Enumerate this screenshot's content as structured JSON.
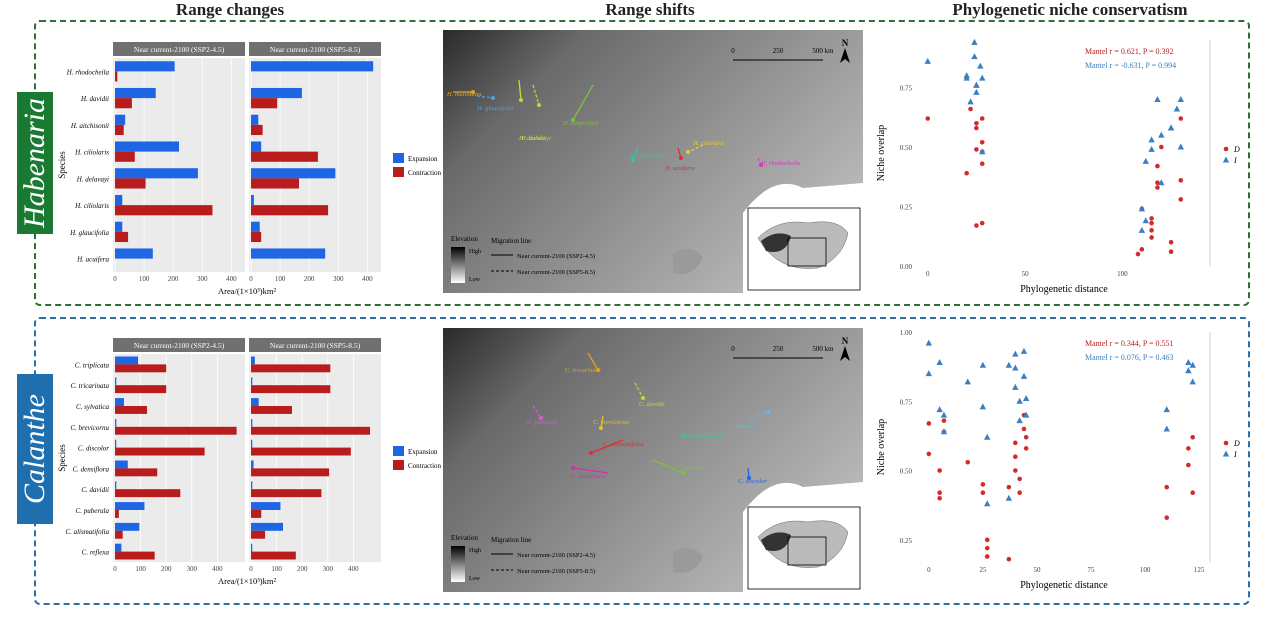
{
  "titles": {
    "range_changes": "Range changes",
    "range_shifts": "Range shifts",
    "pnc": "Phylogenetic niche conservatism"
  },
  "genera": [
    "Habenaria",
    "Calanthe"
  ],
  "colors": {
    "expansion": "#1f66e5",
    "contraction": "#b81c1c",
    "panel_top": "#2e6e38",
    "panel_bottom": "#2b6ea8",
    "genus_top_bg": "#1a7a32",
    "genus_bottom_bg": "#1f6fae",
    "strip": "#707070",
    "plot_bg": "#ebebeb",
    "triangle": "#3a7fc1",
    "dot": "#d42a2a"
  },
  "legend": {
    "expansion": "Expansion",
    "contraction": "Contraction"
  },
  "map_legend": {
    "elevation": "Elevation",
    "high": "High",
    "low": "Low",
    "migration": "Migration line",
    "ssp245": "Near current-2100 (SSP2-4.5)",
    "ssp585": "Near current-2100 (SSP5-8.5)",
    "north": "N",
    "scale_top": [
      "0",
      "250",
      "500 km"
    ],
    "scale_bottom": [
      "0",
      "250",
      "500 km"
    ]
  },
  "map_labels_top": [
    "H. malintana",
    "H. glaucifolia",
    "H. davidii",
    "H. delavayi",
    "H. limprichtii",
    "H. aitchisonii",
    "H. ciliolaris",
    "H. acuifera",
    "H. rhodocheila"
  ],
  "map_labels_bottom": [
    "C. tricarinata",
    "C. davidii",
    "C. brevicornu",
    "C. alismatifolia",
    "C. puberula",
    "C. densiflora",
    "C. sylvatica",
    "C. triplicata",
    "C. reflexa",
    "C. discolor"
  ],
  "chart_data": [
    {
      "type": "bar",
      "title": "Habenaria range changes",
      "facets": [
        "Near current-2100 (SSP2-4.5)",
        "Near current-2100 (SSP5-8.5)"
      ],
      "categories": [
        "H. rhodocheila",
        "H. davidii",
        "H. aitchisonii",
        "H. ciliolaris",
        "H. delavayi",
        "H. ciliolaris",
        "H. glaucifolia",
        "H. acuifera"
      ],
      "ylabel": "Species",
      "xlabel": "Area/(1×10³)km²",
      "xticks": [
        "0",
        "100",
        "200",
        "300",
        "400"
      ],
      "xlim": [
        0,
        440
      ],
      "series": [
        {
          "name": "Expansion",
          "facet": 0,
          "values": [
            205,
            140,
            35,
            220,
            285,
            25,
            25,
            130
          ]
        },
        {
          "name": "Contraction",
          "facet": 0,
          "values": [
            8,
            58,
            30,
            68,
            105,
            335,
            45,
            0
          ]
        },
        {
          "name": "Expansion",
          "facet": 1,
          "values": [
            420,
            175,
            25,
            35,
            290,
            10,
            30,
            255
          ]
        },
        {
          "name": "Contraction",
          "facet": 1,
          "values": [
            0,
            90,
            40,
            230,
            165,
            265,
            35,
            0
          ]
        }
      ]
    },
    {
      "type": "bar",
      "title": "Calanthe range changes",
      "facets": [
        "Near current-2100 (SSP2-4.5)",
        "Near current-2100 (SSP5-8.5)"
      ],
      "categories": [
        "C. triplicata",
        "C. tricarinata",
        "C. sylvatica",
        "C. brevicornu",
        "C. discolor",
        "C. densiflora",
        "C. davidii",
        "C. puberula",
        "C. alismatifolia",
        "C. reflexa"
      ],
      "ylabel": "Species",
      "xlabel": "Area/(1×10³)km²",
      "xticks": [
        "0",
        "100",
        "200",
        "300",
        "400"
      ],
      "xlim": [
        0,
        500
      ],
      "series": [
        {
          "name": "Expansion",
          "facet": 0,
          "values": [
            90,
            5,
            35,
            5,
            5,
            50,
            5,
            115,
            95,
            25
          ]
        },
        {
          "name": "Contraction",
          "facet": 0,
          "values": [
            200,
            200,
            125,
            475,
            350,
            165,
            255,
            15,
            30,
            155
          ]
        },
        {
          "name": "Expansion",
          "facet": 1,
          "values": [
            15,
            5,
            30,
            5,
            5,
            10,
            5,
            115,
            125,
            5
          ]
        },
        {
          "name": "Contraction",
          "facet": 1,
          "values": [
            310,
            310,
            160,
            465,
            390,
            305,
            275,
            40,
            55,
            175
          ]
        }
      ]
    },
    {
      "type": "scatter",
      "title": "Habenaria niche overlap",
      "xlabel": "Phylogenetic distance",
      "ylabel": "Niche overlap",
      "xticks": [
        "0",
        "50",
        "100"
      ],
      "yticks": [
        "0.00",
        "0.25",
        "0.50",
        "0.75"
      ],
      "xlim": [
        -5,
        145
      ],
      "ylim": [
        0,
        0.95
      ],
      "annotations": [
        "Mantel r = 0.621, P = 0.392",
        "Mantel r = -0.631, P = 0.994"
      ],
      "legend": [
        "D",
        "I"
      ],
      "series": [
        {
          "name": "D",
          "x": [
            0,
            20,
            22,
            25,
            25,
            25,
            25,
            28,
            28,
            28,
            28,
            28,
            108,
            110,
            110,
            115,
            115,
            115,
            115,
            118,
            118,
            118,
            120,
            125,
            125,
            130,
            130,
            130
          ],
          "y": [
            0.62,
            0.39,
            0.66,
            0.6,
            0.58,
            0.49,
            0.17,
            0.52,
            0.48,
            0.62,
            0.43,
            0.18,
            0.05,
            0.07,
            0.24,
            0.2,
            0.18,
            0.15,
            0.12,
            0.33,
            0.35,
            0.42,
            0.5,
            0.06,
            0.1,
            0.28,
            0.36,
            0.62
          ]
        },
        {
          "name": "I",
          "x": [
            0,
            20,
            20,
            22,
            24,
            24,
            25,
            25,
            25,
            27,
            28,
            28,
            110,
            110,
            112,
            112,
            115,
            115,
            118,
            120,
            120,
            125,
            125,
            128,
            130,
            130
          ],
          "y": [
            0.86,
            0.8,
            0.79,
            0.69,
            0.94,
            0.88,
            0.76,
            0.76,
            0.73,
            0.84,
            0.79,
            0.48,
            0.24,
            0.15,
            0.44,
            0.19,
            0.49,
            0.53,
            0.7,
            0.55,
            0.35,
            0.58,
            0.58,
            0.66,
            0.7,
            0.5
          ]
        }
      ]
    },
    {
      "type": "scatter",
      "title": "Calanthe niche overlap",
      "xlabel": "Phylogenetic distance",
      "ylabel": "Niche overlap",
      "xticks": [
        "0",
        "25",
        "50",
        "75",
        "100",
        "125"
      ],
      "yticks": [
        "0.25",
        "0.50",
        "0.75",
        "1.00"
      ],
      "xlim": [
        -5,
        130
      ],
      "ylim": [
        0.17,
        1.0
      ],
      "annotations": [
        "Mantel r = 0.344, P = 0.551",
        "Mantel r = 0.076, P = 0.463"
      ],
      "legend": [
        "D",
        "I"
      ],
      "series": [
        {
          "name": "D",
          "x": [
            0,
            0,
            5,
            5,
            5,
            7,
            7,
            18,
            25,
            25,
            27,
            27,
            27,
            37,
            37,
            40,
            40,
            40,
            42,
            42,
            44,
            44,
            45,
            45,
            110,
            110,
            120,
            120,
            122,
            122
          ],
          "y": [
            0.56,
            0.67,
            0.4,
            0.42,
            0.5,
            0.64,
            0.68,
            0.53,
            0.42,
            0.45,
            0.25,
            0.22,
            0.19,
            0.18,
            0.44,
            0.6,
            0.55,
            0.5,
            0.47,
            0.42,
            0.7,
            0.65,
            0.62,
            0.58,
            0.33,
            0.44,
            0.58,
            0.52,
            0.42,
            0.62
          ]
        },
        {
          "name": "I",
          "x": [
            0,
            0,
            5,
            5,
            7,
            7,
            18,
            25,
            25,
            27,
            27,
            37,
            37,
            40,
            40,
            40,
            42,
            42,
            44,
            44,
            45,
            45,
            110,
            110,
            120,
            120,
            122,
            122
          ],
          "y": [
            0.96,
            0.85,
            0.89,
            0.72,
            0.64,
            0.7,
            0.82,
            0.88,
            0.73,
            0.38,
            0.62,
            0.88,
            0.4,
            0.92,
            0.87,
            0.8,
            0.75,
            0.68,
            0.93,
            0.84,
            0.76,
            0.7,
            0.72,
            0.65,
            0.89,
            0.86,
            0.88,
            0.82
          ]
        }
      ]
    }
  ]
}
